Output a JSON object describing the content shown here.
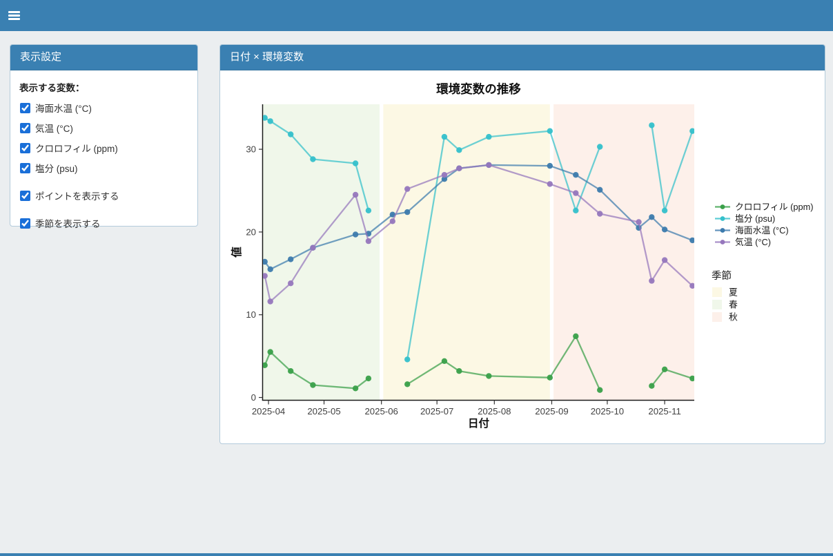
{
  "navbar": {
    "menu_icon": "hamburger"
  },
  "colors": {
    "navbar_bg": "#3a80b2",
    "panel_header_bg": "#3a80b2",
    "page_bg": "#ebeef0",
    "checkbox_accent": "#1a6fd8"
  },
  "sidebar": {
    "title": "表示設定",
    "variables_label": "表示する変数：",
    "variables": [
      {
        "label": "海面水温 (°C)",
        "checked": true
      },
      {
        "label": "気温 (°C)",
        "checked": true
      },
      {
        "label": "クロロフィル (ppm)",
        "checked": true
      },
      {
        "label": "塩分 (psu)",
        "checked": true
      }
    ],
    "options": [
      {
        "label": "ポイントを表示する",
        "checked": true
      },
      {
        "label": "季節を表示する",
        "checked": true
      }
    ]
  },
  "main": {
    "title": "日付 × 環境変数"
  },
  "chart_data": {
    "type": "line",
    "title": "環境変数の推移",
    "xlabel": "日付",
    "ylabel": "値",
    "ylim": [
      0,
      35.4
    ],
    "yticks": [
      0,
      10,
      20,
      30
    ],
    "xticks": [
      "2025-04",
      "2025-05",
      "2025-06",
      "2025-07",
      "2025-08",
      "2025-09",
      "2025-10",
      "2025-11"
    ],
    "x_domain": [
      "2025-03-29",
      "2025-11-17"
    ],
    "grid": false,
    "legend_position": "right",
    "dates": [
      "2025-03-30",
      "2025-04-02",
      "2025-04-13",
      "2025-04-25",
      "2025-05-18",
      "2025-05-25",
      "2025-06-07",
      "2025-06-15",
      "2025-07-05",
      "2025-07-13",
      "2025-07-29",
      "2025-08-31",
      "2025-09-14",
      "2025-09-27",
      "2025-10-18",
      "2025-10-25",
      "2025-11-01",
      "2025-11-16"
    ],
    "series": [
      {
        "name": "クロロフィル (ppm)",
        "color": "#3aa04a",
        "values": [
          3.9,
          5.5,
          3.2,
          1.5,
          1.1,
          2.3,
          null,
          1.6,
          4.4,
          3.2,
          2.6,
          2.4,
          7.4,
          0.9,
          null,
          1.4,
          3.4,
          2.3
        ]
      },
      {
        "name": "塩分 (psu)",
        "color": "#35c0cb",
        "values": [
          33.8,
          33.4,
          31.8,
          28.8,
          28.3,
          22.6,
          null,
          4.6,
          31.5,
          29.9,
          31.5,
          32.2,
          22.6,
          30.3,
          null,
          32.9,
          22.6,
          32.2
        ]
      },
      {
        "name": "海面水温 (°C)",
        "color": "#3d7bad",
        "values": [
          16.4,
          15.5,
          16.7,
          18.1,
          19.7,
          19.8,
          22.1,
          22.4,
          26.4,
          27.7,
          28.1,
          28.0,
          26.9,
          25.1,
          20.5,
          21.8,
          20.3,
          19.0
        ]
      },
      {
        "name": "気温 (°C)",
        "color": "#9677bd",
        "values": [
          14.7,
          11.6,
          13.8,
          18.1,
          24.5,
          18.9,
          21.3,
          25.2,
          26.9,
          27.7,
          28.1,
          25.8,
          24.7,
          22.2,
          21.2,
          14.1,
          16.6,
          13.5
        ]
      }
    ],
    "seasons": {
      "title": "季節",
      "bands": [
        {
          "label": "春",
          "color": "#f0f7ea",
          "from": "2025-03-29",
          "to": "2025-05-31"
        },
        {
          "label": "夏",
          "color": "#fcf8e4",
          "from": "2025-06-02",
          "to": "2025-08-31"
        },
        {
          "label": "秋",
          "color": "#fdf0ea",
          "from": "2025-09-02",
          "to": "2025-11-17"
        }
      ],
      "legend_order": [
        "夏",
        "春",
        "秋"
      ]
    }
  }
}
